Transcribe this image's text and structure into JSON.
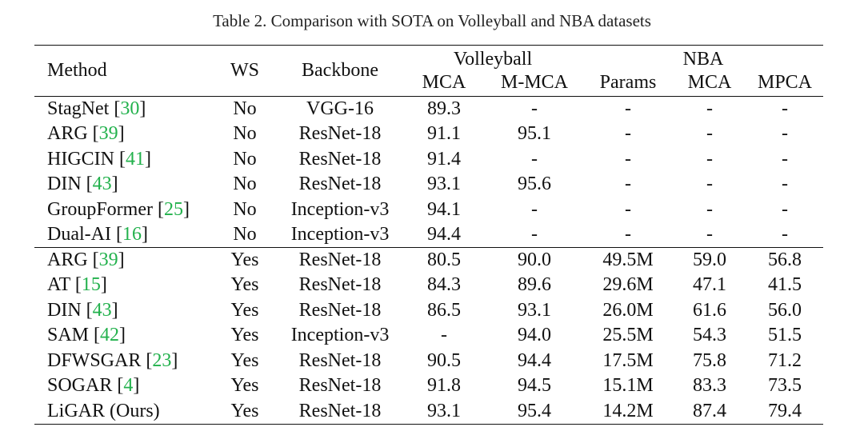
{
  "caption": "Table 2. Comparison with SOTA on Volleyball and NBA datasets",
  "header": {
    "method": "Method",
    "ws": "WS",
    "backbone": "Backbone",
    "volleyball": "Volleyball",
    "nba": "NBA",
    "mca": "MCA",
    "mmca": "M-MCA",
    "params": "Params",
    "nba_mca": "MCA",
    "mpca": "MPCA"
  },
  "rows": [
    {
      "method": "StagNet",
      "ref": "30",
      "ws": "No",
      "backbone": "VGG-16",
      "mca": "89.3",
      "mmca": "-",
      "params": "-",
      "nba_mca": "-",
      "mpca": "-",
      "bold": []
    },
    {
      "method": "ARG",
      "ref": "39",
      "ws": "No",
      "backbone": "ResNet-18",
      "mca": "91.1",
      "mmca": "95.1",
      "params": "-",
      "nba_mca": "-",
      "mpca": "-",
      "bold": []
    },
    {
      "method": "HIGCIN",
      "ref": "41",
      "ws": "No",
      "backbone": "ResNet-18",
      "mca": "91.4",
      "mmca": "-",
      "params": "-",
      "nba_mca": "-",
      "mpca": "-",
      "bold": []
    },
    {
      "method": "DIN",
      "ref": "43",
      "ws": "No",
      "backbone": "ResNet-18",
      "mca": "93.1",
      "mmca": "95.6",
      "params": "-",
      "nba_mca": "-",
      "mpca": "-",
      "bold": [
        "mmca"
      ]
    },
    {
      "method": "GroupFormer",
      "ref": "25",
      "ws": "No",
      "backbone": "Inception-v3",
      "mca": "94.1",
      "mmca": "-",
      "params": "-",
      "nba_mca": "-",
      "mpca": "-",
      "bold": []
    },
    {
      "method": "Dual-AI",
      "ref": "16",
      "ws": "No",
      "backbone": "Inception-v3",
      "mca": "94.4",
      "mmca": "-",
      "params": "-",
      "nba_mca": "-",
      "mpca": "-",
      "bold": [
        "mca"
      ]
    },
    {
      "method": "ARG",
      "ref": "39",
      "ws": "Yes",
      "backbone": "ResNet-18",
      "mca": "80.5",
      "mmca": "90.0",
      "params": "49.5M",
      "nba_mca": "59.0",
      "mpca": "56.8",
      "bold": [],
      "group_start": true
    },
    {
      "method": "AT",
      "ref": "15",
      "ws": "Yes",
      "backbone": "ResNet-18",
      "mca": "84.3",
      "mmca": "89.6",
      "params": "29.6M",
      "nba_mca": "47.1",
      "mpca": "41.5",
      "bold": []
    },
    {
      "method": "DIN",
      "ref": "43",
      "ws": "Yes",
      "backbone": "ResNet-18",
      "mca": "86.5",
      "mmca": "93.1",
      "params": "26.0M",
      "nba_mca": "61.6",
      "mpca": "56.0",
      "bold": []
    },
    {
      "method": "SAM",
      "ref": "42",
      "ws": "Yes",
      "backbone": "Inception-v3",
      "mca": "-",
      "mmca": "94.0",
      "params": "25.5M",
      "nba_mca": "54.3",
      "mpca": "51.5",
      "bold": []
    },
    {
      "method": "DFWSGAR",
      "ref": "23",
      "ws": "Yes",
      "backbone": "ResNet-18",
      "mca": "90.5",
      "mmca": "94.4",
      "params": "17.5M",
      "nba_mca": "75.8",
      "mpca": "71.2",
      "bold": []
    },
    {
      "method": "SOGAR",
      "ref": "4",
      "ws": "Yes",
      "backbone": "ResNet-18",
      "mca": "91.8",
      "mmca": "94.5",
      "params": "15.1M",
      "nba_mca": "83.3",
      "mpca": "73.5",
      "bold": []
    },
    {
      "method": "LiGAR (Ours)",
      "ref": "",
      "ws": "Yes",
      "backbone": "ResNet-18",
      "mca": "93.1",
      "mmca": "95.4",
      "params": "14.2M",
      "nba_mca": "87.4",
      "mpca": "79.4",
      "bold": [
        "mca",
        "mmca",
        "params",
        "nba_mca",
        "mpca"
      ]
    }
  ],
  "colors": {
    "citation": "#22b14c",
    "text": "#111111"
  }
}
